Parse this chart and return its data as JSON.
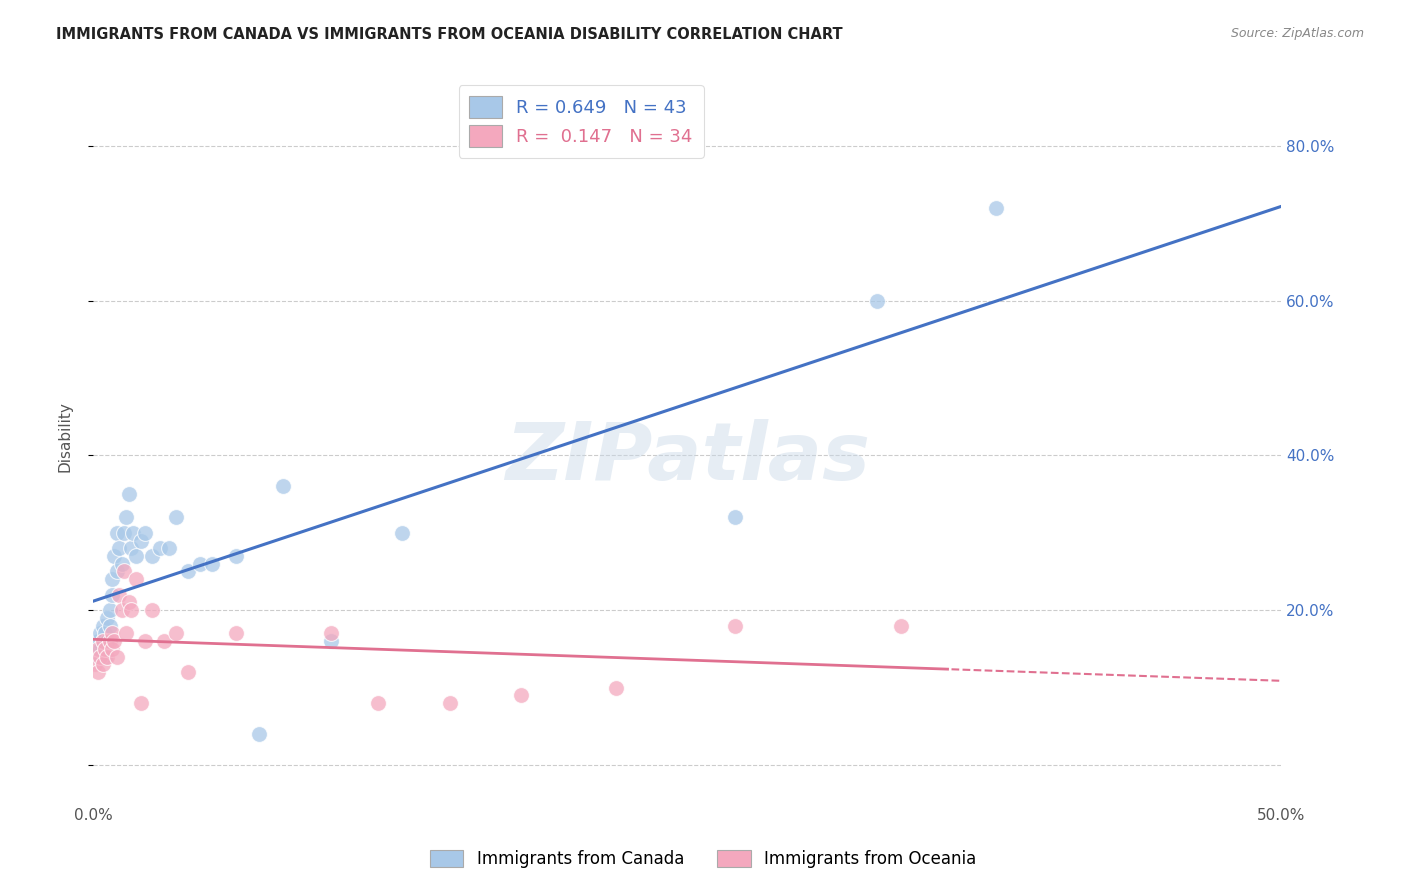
{
  "title": "IMMIGRANTS FROM CANADA VS IMMIGRANTS FROM OCEANIA DISABILITY CORRELATION CHART",
  "source": "Source: ZipAtlas.com",
  "ylabel_label": "Disability",
  "xlim": [
    0.0,
    0.5
  ],
  "ylim": [
    -0.05,
    0.9
  ],
  "xticks": [
    0.0,
    0.1,
    0.2,
    0.3,
    0.4,
    0.5
  ],
  "xtick_labels": [
    "0.0%",
    "",
    "",
    "",
    "",
    "50.0%"
  ],
  "ytick_positions": [
    0.0,
    0.2,
    0.4,
    0.6,
    0.8
  ],
  "ytick_labels": [
    "",
    "20.0%",
    "40.0%",
    "60.0%",
    "80.0%"
  ],
  "canada_R": "0.649",
  "canada_N": "43",
  "oceania_R": "0.147",
  "oceania_N": "34",
  "canada_color": "#a8c8e8",
  "oceania_color": "#f4a8be",
  "canada_line_color": "#4472c4",
  "oceania_line_color": "#e07090",
  "canada_x": [
    0.001,
    0.002,
    0.002,
    0.003,
    0.003,
    0.004,
    0.004,
    0.005,
    0.005,
    0.006,
    0.006,
    0.007,
    0.007,
    0.008,
    0.008,
    0.009,
    0.01,
    0.01,
    0.011,
    0.012,
    0.013,
    0.014,
    0.015,
    0.016,
    0.017,
    0.018,
    0.02,
    0.022,
    0.025,
    0.028,
    0.032,
    0.035,
    0.04,
    0.045,
    0.05,
    0.06,
    0.07,
    0.08,
    0.1,
    0.13,
    0.27,
    0.33,
    0.38
  ],
  "canada_y": [
    0.15,
    0.14,
    0.16,
    0.15,
    0.17,
    0.16,
    0.18,
    0.17,
    0.14,
    0.16,
    0.19,
    0.18,
    0.2,
    0.22,
    0.24,
    0.27,
    0.25,
    0.3,
    0.28,
    0.26,
    0.3,
    0.32,
    0.35,
    0.28,
    0.3,
    0.27,
    0.29,
    0.3,
    0.27,
    0.28,
    0.28,
    0.32,
    0.25,
    0.26,
    0.26,
    0.27,
    0.04,
    0.36,
    0.16,
    0.3,
    0.32,
    0.6,
    0.72
  ],
  "oceania_x": [
    0.001,
    0.002,
    0.002,
    0.003,
    0.004,
    0.004,
    0.005,
    0.006,
    0.007,
    0.008,
    0.008,
    0.009,
    0.01,
    0.011,
    0.012,
    0.013,
    0.014,
    0.015,
    0.016,
    0.018,
    0.02,
    0.022,
    0.025,
    0.03,
    0.035,
    0.04,
    0.06,
    0.1,
    0.12,
    0.15,
    0.18,
    0.22,
    0.27,
    0.34
  ],
  "oceania_y": [
    0.13,
    0.12,
    0.15,
    0.14,
    0.16,
    0.13,
    0.15,
    0.14,
    0.16,
    0.15,
    0.17,
    0.16,
    0.14,
    0.22,
    0.2,
    0.25,
    0.17,
    0.21,
    0.2,
    0.24,
    0.08,
    0.16,
    0.2,
    0.16,
    0.17,
    0.12,
    0.17,
    0.17,
    0.08,
    0.08,
    0.09,
    0.1,
    0.18,
    0.18
  ]
}
